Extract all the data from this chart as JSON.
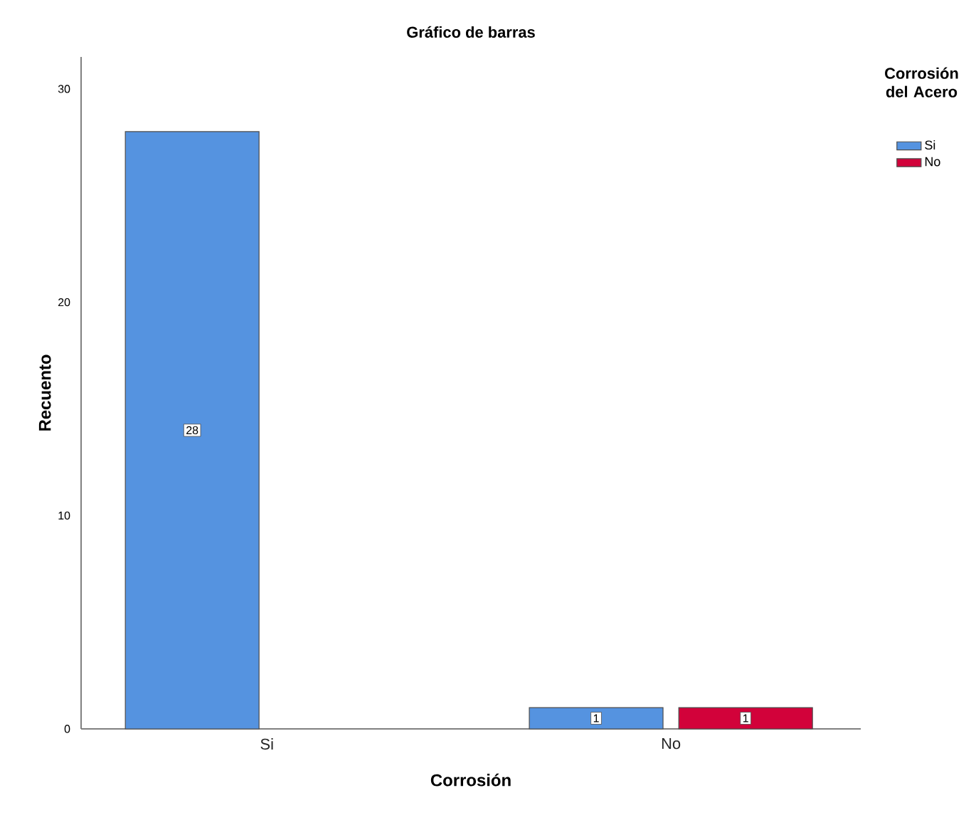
{
  "chart_data": {
    "type": "bar",
    "title": "Gráfico de barras",
    "xlabel": "Corrosión",
    "ylabel": "Recuento",
    "legend_title": "Corrosión del Acero",
    "categories": [
      "Si",
      "No"
    ],
    "series": [
      {
        "name": "Si",
        "color": "#5593e0",
        "values": [
          28,
          1
        ]
      },
      {
        "name": "No",
        "color": "#d2023a",
        "values": [
          null,
          1
        ]
      }
    ],
    "ylim": [
      0,
      31.5
    ],
    "yticks": [
      0,
      10,
      20,
      30
    ],
    "grid": false,
    "legend": "top right",
    "data_labels": true
  }
}
